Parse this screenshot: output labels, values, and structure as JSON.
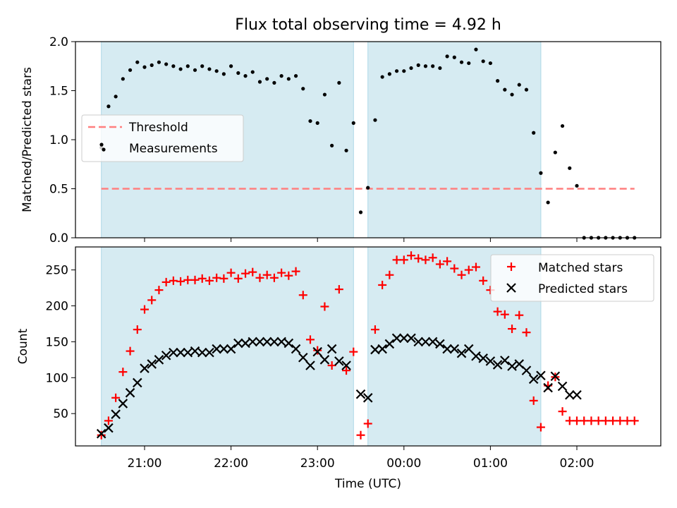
{
  "title": "Flux total observing time = 4.92 h",
  "colors": {
    "shade": "#add8e6",
    "threshold": "#ff7f7f",
    "measurements": "#000000",
    "matched": "#ff0000",
    "predicted": "#000000"
  },
  "chart_data": [
    {
      "type": "scatter",
      "ylabel": "Matched/Predicted stars",
      "ylim": [
        0,
        2.0
      ],
      "yticks": [
        {
          "value": 0.0,
          "label": "0.0"
        },
        {
          "value": 0.5,
          "label": "0.5"
        },
        {
          "value": 1.0,
          "label": "1.0"
        },
        {
          "value": 1.5,
          "label": "1.5"
        },
        {
          "value": 2.0,
          "label": "2.0"
        }
      ],
      "legend": {
        "position": "center-left",
        "threshold_label": "Threshold",
        "measurements_label": "Measurements"
      },
      "threshold": {
        "value": 0.5,
        "x_start": "20:30",
        "x_end": "02:40"
      },
      "shaded_spans": [
        {
          "start": "20:30",
          "end": "23:25"
        },
        {
          "start": "23:35",
          "end": "01:35"
        }
      ],
      "x": [
        "20:30",
        "20:35",
        "20:40",
        "20:45",
        "20:50",
        "20:55",
        "21:00",
        "21:05",
        "21:10",
        "21:15",
        "21:20",
        "21:25",
        "21:30",
        "21:35",
        "21:40",
        "21:45",
        "21:50",
        "21:55",
        "22:00",
        "22:05",
        "22:10",
        "22:15",
        "22:20",
        "22:25",
        "22:30",
        "22:35",
        "22:40",
        "22:45",
        "22:50",
        "22:55",
        "23:00",
        "23:05",
        "23:10",
        "23:15",
        "23:20",
        "23:25",
        "23:30",
        "23:35",
        "23:40",
        "23:45",
        "23:50",
        "23:55",
        "00:00",
        "00:05",
        "00:10",
        "00:15",
        "00:20",
        "00:25",
        "00:30",
        "00:35",
        "00:40",
        "00:45",
        "00:50",
        "00:55",
        "01:00",
        "01:05",
        "01:10",
        "01:15",
        "01:20",
        "01:25",
        "01:30",
        "01:35",
        "01:40",
        "01:45",
        "01:50",
        "01:55",
        "02:00",
        "02:05",
        "02:10",
        "02:15",
        "02:20",
        "02:25",
        "02:30",
        "02:35",
        "02:40"
      ],
      "series": [
        {
          "name": "Measurements",
          "values": [
            0.92,
            1.34,
            1.44,
            1.62,
            1.71,
            1.79,
            1.74,
            1.76,
            1.79,
            1.77,
            1.75,
            1.72,
            1.75,
            1.71,
            1.75,
            1.72,
            1.7,
            1.67,
            1.75,
            1.68,
            1.65,
            1.69,
            1.59,
            1.62,
            1.58,
            1.65,
            1.62,
            1.65,
            1.52,
            1.19,
            1.17,
            1.46,
            0.94,
            1.58,
            0.89,
            1.17,
            0.26,
            0.51,
            1.2,
            1.64,
            1.67,
            1.7,
            1.7,
            1.73,
            1.76,
            1.75,
            1.75,
            1.73,
            1.85,
            1.84,
            1.79,
            1.78,
            1.92,
            1.8,
            1.78,
            1.6,
            1.51,
            1.46,
            1.56,
            1.51,
            1.07,
            0.66,
            0.36,
            0.87,
            1.14,
            0.71,
            0.53,
            0.0,
            0.0,
            0.0,
            0.0,
            0.0,
            0.0,
            0.0,
            0.0
          ]
        }
      ]
    },
    {
      "type": "scatter",
      "xlabel": "Time (UTC)",
      "ylabel": "Count",
      "ylim": [
        5,
        282
      ],
      "yticks": [
        {
          "value": 50,
          "label": "50"
        },
        {
          "value": 100,
          "label": "100"
        },
        {
          "value": 150,
          "label": "150"
        },
        {
          "value": 200,
          "label": "200"
        },
        {
          "value": 250,
          "label": "250"
        }
      ],
      "xticks": [
        {
          "value": "21:00",
          "label": "21:00"
        },
        {
          "value": "22:00",
          "label": "22:00"
        },
        {
          "value": "23:00",
          "label": "23:00"
        },
        {
          "value": "00:00",
          "label": "00:00"
        },
        {
          "value": "01:00",
          "label": "01:00"
        },
        {
          "value": "02:00",
          "label": "02:00"
        }
      ],
      "legend": {
        "position": "top-right",
        "matched_label": "Matched stars",
        "predicted_label": "Predicted stars"
      },
      "shaded_spans": [
        {
          "start": "20:30",
          "end": "23:25"
        },
        {
          "start": "23:35",
          "end": "01:35"
        }
      ],
      "x": [
        "20:30",
        "20:35",
        "20:40",
        "20:45",
        "20:50",
        "20:55",
        "21:00",
        "21:05",
        "21:10",
        "21:15",
        "21:20",
        "21:25",
        "21:30",
        "21:35",
        "21:40",
        "21:45",
        "21:50",
        "21:55",
        "22:00",
        "22:05",
        "22:10",
        "22:15",
        "22:20",
        "22:25",
        "22:30",
        "22:35",
        "22:40",
        "22:45",
        "22:50",
        "22:55",
        "23:00",
        "23:05",
        "23:10",
        "23:15",
        "23:20",
        "23:25",
        "23:30",
        "23:35",
        "23:40",
        "23:45",
        "23:50",
        "23:55",
        "00:00",
        "00:05",
        "00:10",
        "00:15",
        "00:20",
        "00:25",
        "00:30",
        "00:35",
        "00:40",
        "00:45",
        "00:50",
        "00:55",
        "01:00",
        "01:05",
        "01:10",
        "01:15",
        "01:20",
        "01:25",
        "01:30",
        "01:35",
        "01:40",
        "01:45",
        "01:50",
        "01:55",
        "02:00",
        "02:05",
        "02:10",
        "02:15",
        "02:20",
        "02:25",
        "02:30",
        "02:35",
        "02:40"
      ],
      "series": [
        {
          "name": "Matched stars",
          "values": [
            20,
            40,
            72,
            108,
            137,
            167,
            195,
            208,
            222,
            233,
            235,
            234,
            236,
            236,
            238,
            235,
            239,
            238,
            246,
            238,
            245,
            247,
            239,
            243,
            239,
            246,
            242,
            248,
            215,
            153,
            138,
            199,
            117,
            223,
            110,
            136,
            20,
            36,
            167,
            229,
            243,
            264,
            264,
            270,
            266,
            264,
            267,
            258,
            262,
            252,
            243,
            250,
            254,
            235,
            222,
            192,
            188,
            168,
            187,
            163,
            68,
            31,
            89,
            101,
            53,
            40,
            40,
            40,
            40,
            40,
            40,
            40,
            40,
            40,
            40
          ]
        },
        {
          "name": "Predicted stars",
          "values": [
            22,
            30,
            49,
            64,
            79,
            93,
            113,
            119,
            125,
            131,
            135,
            135,
            135,
            137,
            135,
            135,
            140,
            140,
            140,
            148,
            148,
            150,
            150,
            150,
            150,
            150,
            148,
            140,
            128,
            117,
            136,
            125,
            140,
            123,
            117,
            null,
            77,
            72,
            139,
            140,
            147,
            155,
            155,
            155,
            150,
            150,
            150,
            147,
            140,
            140,
            134,
            140,
            130,
            127,
            123,
            118,
            124,
            116,
            119,
            110,
            98,
            103,
            86,
            102,
            88,
            76,
            76,
            null,
            null,
            null,
            null,
            null,
            null,
            null,
            null
          ]
        }
      ]
    }
  ]
}
